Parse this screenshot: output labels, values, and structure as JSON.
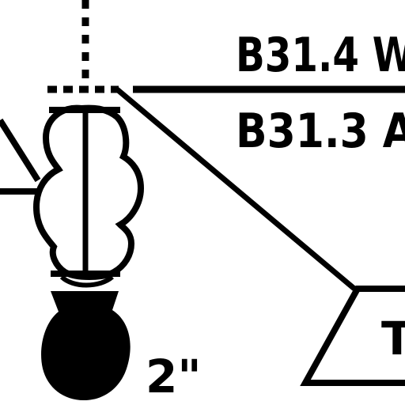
{
  "diagram": {
    "labels": {
      "upper_callout": "B31.4 W",
      "lower_callout": "B31.3 A",
      "pipe_size": "2\"",
      "box_text": "T"
    },
    "colors": {
      "ink": "#000000",
      "paper": "#ffffff"
    }
  }
}
